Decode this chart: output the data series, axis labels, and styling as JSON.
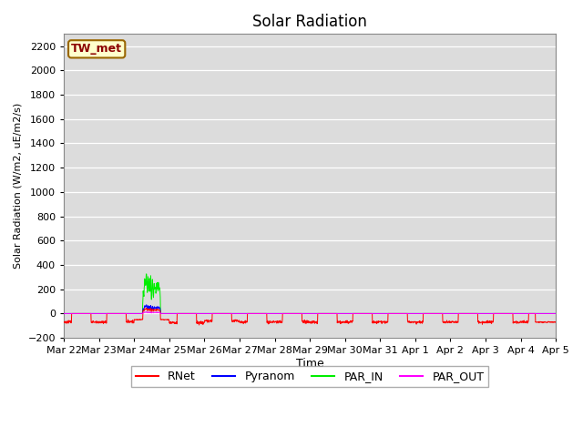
{
  "title": "Solar Radiation",
  "ylabel": "Solar Radiation (W/m2, uE/m2/s)",
  "xlabel": "Time",
  "ylim": [
    -200,
    2300
  ],
  "yticks": [
    -200,
    0,
    200,
    400,
    600,
    800,
    1000,
    1200,
    1400,
    1600,
    1800,
    2000,
    2200
  ],
  "bg_color": "#dcdcdc",
  "legend_labels": [
    "RNet",
    "Pyranom",
    "PAR_IN",
    "PAR_OUT"
  ],
  "legend_colors": [
    "red",
    "blue",
    "lime",
    "magenta"
  ],
  "station_label": "TW_met",
  "station_label_bg": "#ffffcc",
  "station_label_border": "#996600",
  "n_days": 14,
  "tick_labels": [
    "Mar 22",
    "Mar 23",
    "Mar 24",
    "Mar 25",
    "Mar 26",
    "Mar 27",
    "Mar 28",
    "Mar 29",
    "Mar 30",
    "Mar 31",
    "Apr 1",
    "Apr 2",
    "Apr 3",
    "Apr 4",
    "Apr 5"
  ],
  "line_colors": {
    "RNet": "red",
    "Pyranom": "blue",
    "PAR_IN": "#00ee00",
    "PAR_OUT": "magenta"
  }
}
